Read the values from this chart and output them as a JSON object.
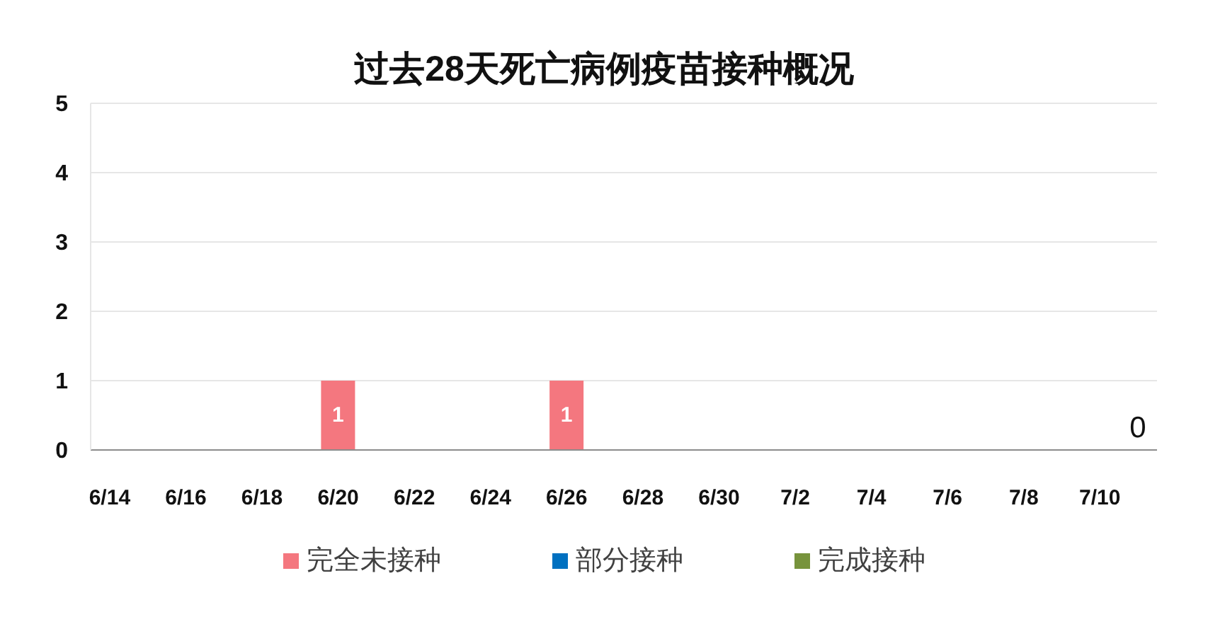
{
  "chart_data": {
    "type": "bar",
    "title": "过去28天死亡病例疫苗接种概况",
    "categories": [
      "6/14",
      null,
      "6/16",
      null,
      "6/18",
      null,
      "6/20",
      null,
      "6/22",
      null,
      "6/24",
      null,
      "6/26",
      null,
      "6/28",
      null,
      "6/30",
      null,
      "7/2",
      null,
      "7/4",
      null,
      "7/6",
      null,
      "7/8",
      null,
      "7/10",
      null
    ],
    "series": [
      {
        "name": "完全未接种",
        "color": "#f4777f",
        "values": [
          0,
          0,
          0,
          0,
          0,
          0,
          1,
          0,
          0,
          0,
          0,
          0,
          1,
          0,
          0,
          0,
          0,
          0,
          0,
          0,
          0,
          0,
          0,
          0,
          0,
          0,
          0,
          0
        ],
        "value_labels": [
          null,
          null,
          null,
          null,
          null,
          null,
          "1",
          null,
          null,
          null,
          null,
          null,
          "1",
          null,
          null,
          null,
          null,
          null,
          null,
          null,
          null,
          null,
          null,
          null,
          null,
          null,
          null,
          "0"
        ]
      },
      {
        "name": "部分接种",
        "color": "#0070c0",
        "values": [
          0,
          0,
          0,
          0,
          0,
          0,
          0,
          0,
          0,
          0,
          0,
          0,
          0,
          0,
          0,
          0,
          0,
          0,
          0,
          0,
          0,
          0,
          0,
          0,
          0,
          0,
          0,
          0
        ]
      },
      {
        "name": "完成接种",
        "color": "#77933c",
        "values": [
          0,
          0,
          0,
          0,
          0,
          0,
          0,
          0,
          0,
          0,
          0,
          0,
          0,
          0,
          0,
          0,
          0,
          0,
          0,
          0,
          0,
          0,
          0,
          0,
          0,
          0,
          0,
          0
        ]
      }
    ],
    "stacked": true,
    "ylim": [
      0,
      5
    ],
    "yticks": [
      0,
      1,
      2,
      3,
      4,
      5
    ],
    "grid": "y",
    "legend": "bottom"
  }
}
